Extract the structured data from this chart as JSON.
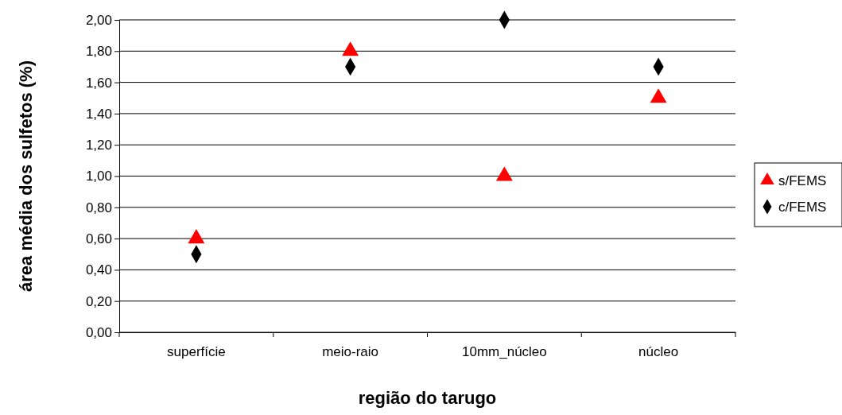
{
  "chart_data": {
    "type": "scatter",
    "xlabel": "região do tarugo",
    "ylabel": "área média dos sulfetos (%)",
    "categories": [
      "superfície",
      "meio-raio",
      "10mm_núcleo",
      "núcleo"
    ],
    "series": [
      {
        "name": "s/FEMS",
        "color": "#ff0000",
        "marker": "triangle",
        "values": [
          0.6,
          1.8,
          1.0,
          1.5
        ]
      },
      {
        "name": "c/FEMS",
        "color": "#000000",
        "marker": "diamond",
        "values": [
          0.5,
          1.7,
          2.0,
          1.7
        ]
      }
    ],
    "ylim": [
      0,
      2
    ],
    "yticks": [
      {
        "value": 0,
        "label": "0,00"
      },
      {
        "value": 0.2,
        "label": "0,20"
      },
      {
        "value": 0.4,
        "label": "0,40"
      },
      {
        "value": 0.6,
        "label": "0,60"
      },
      {
        "value": 0.8,
        "label": "0,80"
      },
      {
        "value": 1,
        "label": "1,00"
      },
      {
        "value": 1.2,
        "label": "1,20"
      },
      {
        "value": 1.4,
        "label": "1,40"
      },
      {
        "value": 1.6,
        "label": "1,60"
      },
      {
        "value": 1.8,
        "label": "1,80"
      },
      {
        "value": 2,
        "label": "2,00"
      }
    ],
    "grid": "y",
    "legend": "right"
  }
}
